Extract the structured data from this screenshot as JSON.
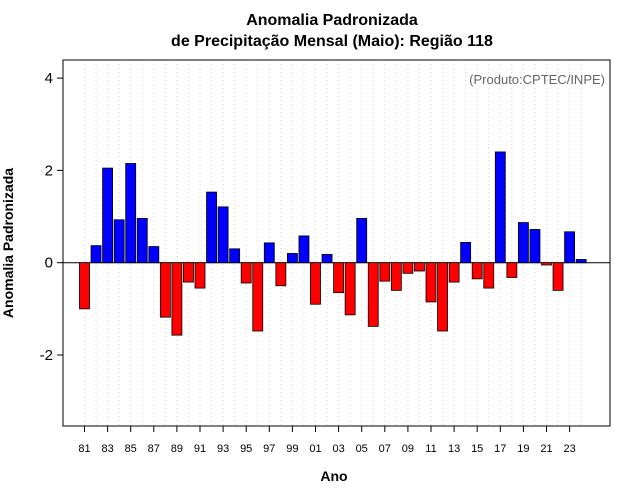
{
  "chart_data": {
    "type": "bar",
    "title": "Anomalia Padronizada",
    "subtitle": "de Precipitação Mensal (Maio): Região 118",
    "xlabel": "Ano",
    "ylabel": "Anomalia Padronizada",
    "annotation": "(Produto:CPTEC/INPE)",
    "ylim": [
      -3.5,
      4.4
    ],
    "yticks": [
      -2,
      0,
      2,
      4
    ],
    "categories": [
      "81",
      "82",
      "83",
      "84",
      "85",
      "86",
      "87",
      "88",
      "89",
      "90",
      "91",
      "92",
      "93",
      "94",
      "95",
      "96",
      "97",
      "98",
      "99",
      "00",
      "01",
      "02",
      "03",
      "04",
      "05",
      "06",
      "07",
      "08",
      "09",
      "10",
      "11",
      "12",
      "13",
      "14",
      "15",
      "16",
      "17",
      "18",
      "19",
      "20",
      "21",
      "22",
      "23",
      "24"
    ],
    "tick_labels": [
      "81",
      "83",
      "85",
      "87",
      "89",
      "91",
      "93",
      "95",
      "97",
      "99",
      "01",
      "03",
      "05",
      "07",
      "09",
      "11",
      "13",
      "15",
      "17",
      "19",
      "21",
      "23"
    ],
    "values": [
      -1.0,
      0.37,
      2.05,
      0.93,
      2.15,
      0.96,
      0.35,
      -1.18,
      -1.57,
      -0.42,
      -0.55,
      1.53,
      1.21,
      0.3,
      -0.44,
      -1.48,
      0.43,
      -0.5,
      0.2,
      0.58,
      -0.9,
      0.18,
      -0.65,
      -1.13,
      0.96,
      -1.38,
      -0.4,
      -0.6,
      -0.23,
      -0.18,
      -0.85,
      -1.48,
      -0.42,
      0.44,
      -0.35,
      -0.55,
      2.4,
      -0.32,
      0.87,
      0.72,
      -0.05,
      -0.6,
      0.67,
      0.07
    ],
    "colors": {
      "positive": "#0000ff",
      "negative": "#ff0000",
      "grid": "#d3d3d3"
    }
  }
}
